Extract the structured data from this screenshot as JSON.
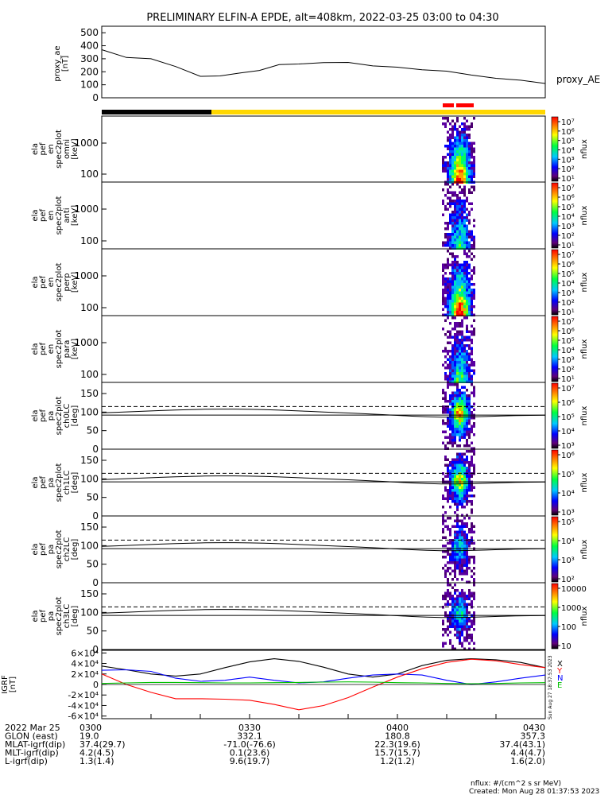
{
  "title": "PRELIMINARY ELFIN-A EPDE, alt=408km, 2022-03-25 03:00 to 04:30",
  "colors": {
    "bar_night": "#000000",
    "bar_day": "#ffd700",
    "bar_science": "#ff0000",
    "ae": "#000000",
    "grf_x": "#000000",
    "grf_y": "#0000ff",
    "grf_z": "#ff0000",
    "grf_e": "#00c000"
  },
  "panels": {
    "ae": {
      "label": [
        "proxy_ae",
        "[nT]"
      ],
      "legend": "proxy_AE",
      "yticks": [
        "0",
        "100",
        "200",
        "300",
        "400",
        "500"
      ]
    },
    "omni": {
      "label": [
        "ela",
        "pef",
        "en",
        "spec2plot",
        "omni",
        "[keV]"
      ],
      "yticks": [
        "100",
        "1000"
      ]
    },
    "anti": {
      "label": [
        "ela",
        "pef",
        "en",
        "spec2plot",
        "anti",
        "[keV]"
      ],
      "yticks": [
        "100",
        "1000"
      ]
    },
    "perp": {
      "label": [
        "ela",
        "pef",
        "en",
        "spec2plot",
        "perp",
        "[keV]"
      ],
      "yticks": [
        "100",
        "1000"
      ]
    },
    "para": {
      "label": [
        "ela",
        "pef",
        "en",
        "spec2plot",
        "para",
        "[keV]"
      ],
      "yticks": [
        "100",
        "1000"
      ]
    },
    "ch0": {
      "label": [
        "ela",
        "pef",
        "pa",
        "spec2plot",
        "ch0LC",
        "[deg]"
      ],
      "yticks": [
        "0",
        "50",
        "100",
        "150"
      ]
    },
    "ch1": {
      "label": [
        "ela",
        "pef",
        "pa",
        "spec2plot",
        "ch1LC",
        "[deg]"
      ],
      "yticks": [
        "0",
        "50",
        "100",
        "150"
      ]
    },
    "ch2": {
      "label": [
        "ela",
        "pef",
        "pa",
        "spec2plot",
        "ch2LC",
        "[deg]"
      ],
      "yticks": [
        "0",
        "50",
        "100",
        "150"
      ]
    },
    "ch3": {
      "label": [
        "ela",
        "pef",
        "pa",
        "spec2plot",
        "ch3LC",
        "[deg]"
      ],
      "yticks": [
        "0",
        "50",
        "100",
        "150"
      ]
    },
    "grf": {
      "label": [
        "IGRF",
        "[nT]"
      ],
      "yticks": [
        "-6×10⁴",
        "-4×10⁴",
        "-2×10⁴",
        "0",
        "2×10⁴",
        "4×10⁴",
        "6×10⁴"
      ],
      "legend": [
        "X",
        "Y",
        "N",
        "E"
      ]
    }
  },
  "colorbars": {
    "omni": {
      "unit": "nflux",
      "ticks": [
        "10¹",
        "10²",
        "10³",
        "10⁴",
        "10⁵",
        "10⁶",
        "10⁷"
      ]
    },
    "anti": {
      "unit": "nflux",
      "ticks": [
        "10¹",
        "10²",
        "10³",
        "10⁴",
        "10⁵",
        "10⁶",
        "10⁷"
      ]
    },
    "perp": {
      "unit": "nflux",
      "ticks": [
        "10¹",
        "10²",
        "10³",
        "10⁴",
        "10⁵",
        "10⁶",
        "10⁷"
      ]
    },
    "para": {
      "unit": "nflux",
      "ticks": [
        "10¹",
        "10²",
        "10³",
        "10⁴",
        "10⁵",
        "10⁶",
        "10⁷"
      ]
    },
    "ch0": {
      "unit": "nflux",
      "ticks": [
        "10³",
        "10⁴",
        "10⁵",
        "10⁶",
        "10⁷"
      ]
    },
    "ch1": {
      "unit": "nflux",
      "ticks": [
        "10³",
        "10⁴",
        "10⁵",
        "10⁶"
      ]
    },
    "ch2": {
      "unit": "nflux",
      "ticks": [
        "10²",
        "10³",
        "10⁴",
        "10⁵"
      ]
    },
    "ch3": {
      "unit": "nflux",
      "ticks": [
        "10",
        "100",
        "1000",
        "10000"
      ]
    }
  },
  "vertical_stamp": "Sun Aug 27 18:37:53 2023",
  "footer": {
    "rows": [
      {
        "label": "2022 Mar 25",
        "values": [
          "0300",
          "0330",
          "0400",
          "0430"
        ]
      },
      {
        "label": "GLON (east)",
        "values": [
          "19.0",
          "332.1",
          "180.8",
          "357.3"
        ]
      },
      {
        "label": "MLAT-igrf(dip)",
        "values": [
          "37.4(29.7)",
          "-71.0(-76.6)",
          "22.3(19.6)",
          "37.4(43.1)"
        ]
      },
      {
        "label": "MLT-igrf(dip)",
        "values": [
          "4.2(4.5)",
          "0.1(23.6)",
          "15.7(15.7)",
          "4.4(4.7)"
        ]
      },
      {
        "label": "L-igrf(dip)",
        "values": [
          "1.3(1.4)",
          "9.6(19.7)",
          "1.2(1.2)",
          "1.6(2.0)"
        ]
      }
    ],
    "nflux_note": "nflux: #/(cm^2 s sr MeV)",
    "created": "Created: Mon Aug 28 01:37:53 2023"
  },
  "chart_data": [
    {
      "type": "line",
      "name": "proxy_ae",
      "x_minutes": [
        0,
        5,
        10,
        15,
        20,
        24,
        28,
        32,
        36,
        40,
        45,
        50,
        55,
        60,
        65,
        70,
        75,
        80,
        85,
        90
      ],
      "values": [
        370,
        310,
        300,
        240,
        165,
        168,
        190,
        210,
        255,
        260,
        270,
        272,
        245,
        235,
        215,
        205,
        175,
        150,
        135,
        110
      ],
      "ylim": [
        0,
        550
      ]
    },
    {
      "type": "line",
      "name": "IGRF",
      "x_minutes": [
        0,
        5,
        10,
        15,
        20,
        25,
        30,
        35,
        40,
        45,
        50,
        55,
        60,
        65,
        70,
        75,
        80,
        85,
        90
      ],
      "series": [
        {
          "values": [
            35000,
            28000,
            20000,
            16000,
            20000,
            32000,
            43000,
            49000,
            44000,
            33000,
            20000,
            14000,
            20000,
            36000,
            46000,
            49000,
            47000,
            42000,
            32000
          ]
        },
        {
          "values": [
            27000,
            28000,
            25000,
            12000,
            6000,
            8000,
            14000,
            8000,
            3000,
            5000,
            12000,
            18000,
            20000,
            18000,
            8000,
            0,
            5000,
            12000,
            18000
          ]
        },
        {
          "values": [
            20000,
            0,
            -15000,
            -27000,
            -27000,
            -28000,
            -30000,
            -38000,
            -48000,
            -40000,
            -25000,
            -5000,
            14000,
            30000,
            42000,
            48000,
            45000,
            38000,
            32000
          ]
        },
        {
          "values": [
            2000,
            3000,
            4000,
            4000,
            3500,
            3000,
            3000,
            3500,
            4000,
            4500,
            5000,
            4500,
            3500,
            3000,
            2000,
            1500,
            2000,
            3000,
            3500
          ]
        }
      ],
      "ylim": [
        -65000,
        65000
      ]
    }
  ]
}
